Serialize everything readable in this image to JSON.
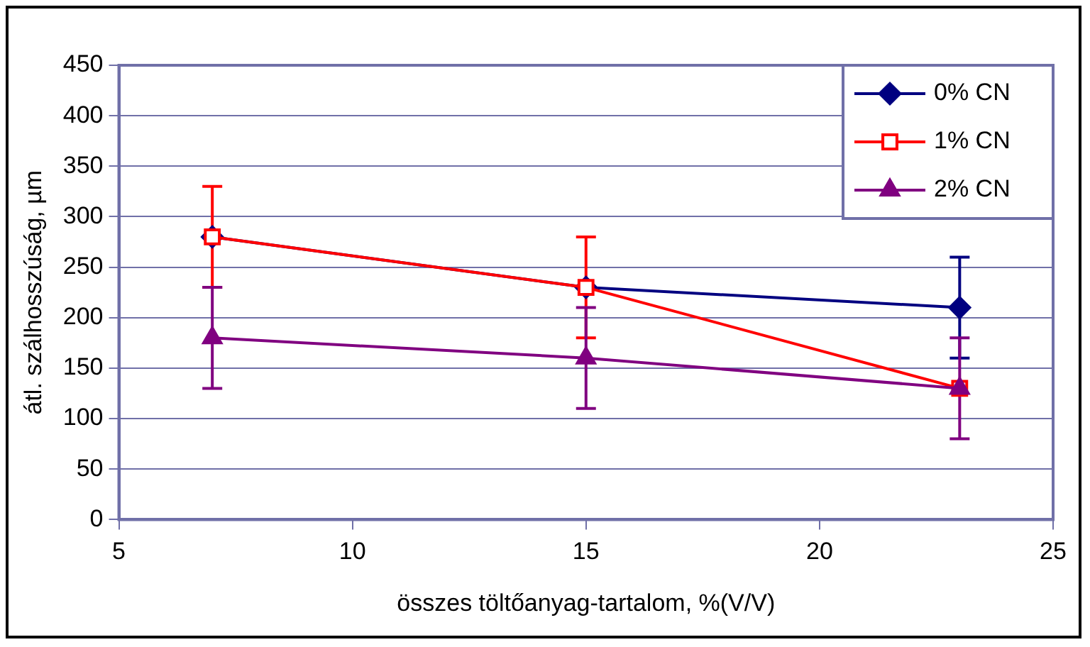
{
  "chart_data": {
    "type": "line",
    "xlabel": "összes töltőanyag-tartalom, %(V/V)",
    "ylabel": "átl. szálhosszúság, µm",
    "x": [
      7,
      15,
      23
    ],
    "series": [
      {
        "name": "0% CN",
        "color": "#000080",
        "marker": "diamond",
        "values": [
          280,
          230,
          210
        ],
        "errors": [
          null,
          null,
          50
        ]
      },
      {
        "name": "1% CN",
        "color": "#ff0000",
        "marker": "square",
        "values": [
          280,
          230,
          130
        ],
        "errors": [
          50,
          50,
          null
        ]
      },
      {
        "name": "2% CN",
        "color": "#800080",
        "marker": "triangle",
        "values": [
          180,
          160,
          130
        ],
        "errors": [
          50,
          50,
          50
        ]
      }
    ],
    "xlim": [
      5,
      25
    ],
    "xticks": [
      5,
      10,
      15,
      20,
      25
    ],
    "ylim": [
      0,
      450
    ],
    "yticks": [
      0,
      50,
      100,
      150,
      200,
      250,
      300,
      350,
      400,
      450
    ],
    "grid": "y",
    "legend": "top right",
    "line_style": "solid"
  }
}
